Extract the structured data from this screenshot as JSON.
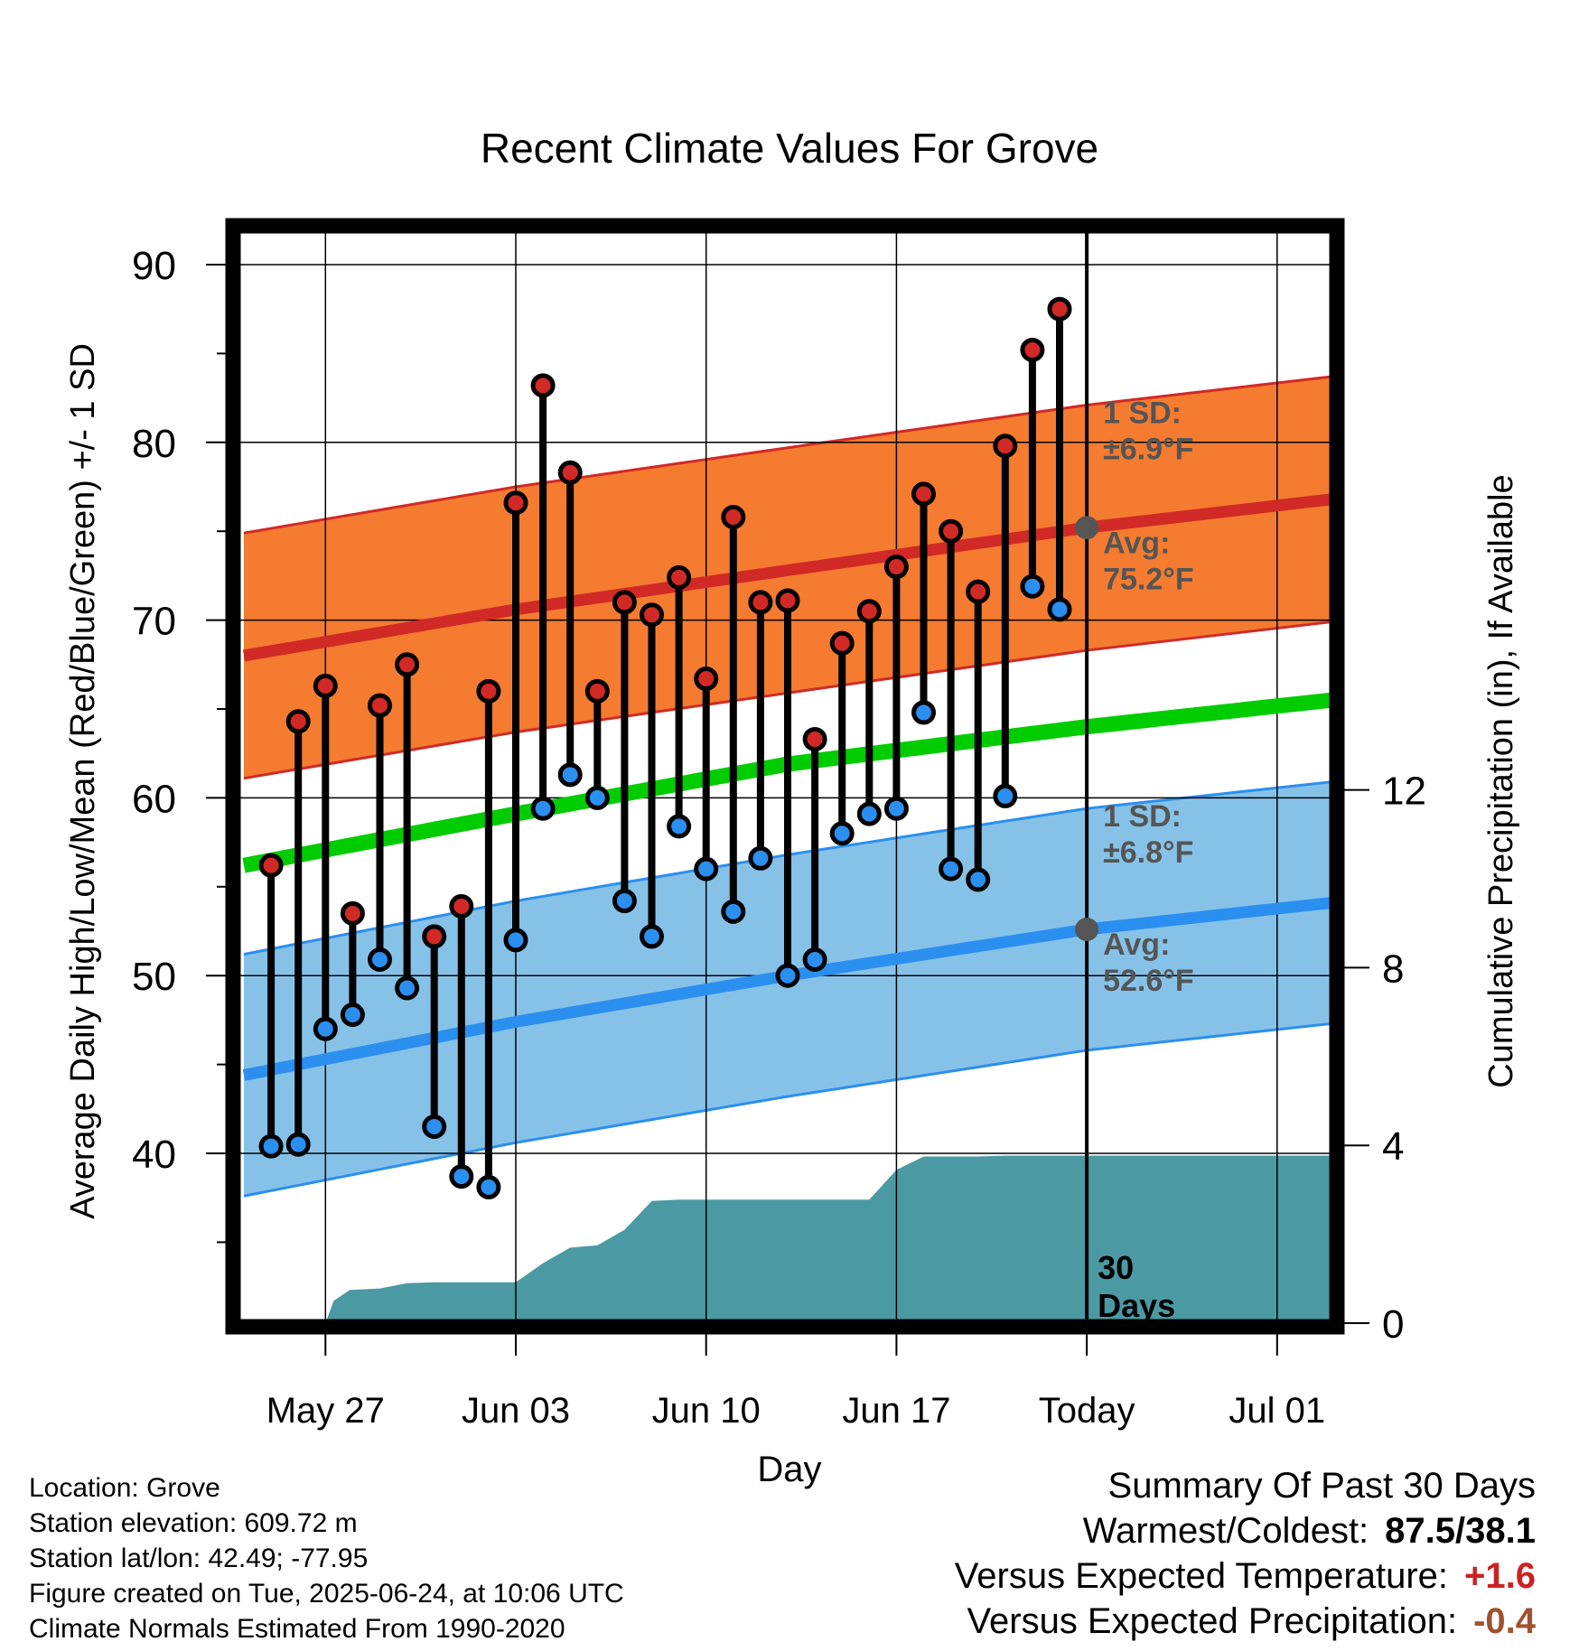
{
  "chart_data": {
    "type": "line",
    "title": "Recent Climate Values For Grove",
    "xlabel": "Day",
    "ylabel": "Average Daily High/Low/Mean (Red/Blue/Green) +/- 1 SD",
    "y2label": "Cumulative Precipitation (in), If Available",
    "ylim": [
      30,
      93
    ],
    "y2lim": [
      0,
      12
    ],
    "y2ticks": [
      "0",
      "4",
      "8",
      "12"
    ],
    "yticks": [
      "40",
      "50",
      "60",
      "70",
      "80",
      "90"
    ],
    "x_range_days_from_may24": [
      0,
      40
    ],
    "xticks": [
      {
        "label": "May 27",
        "day": 3
      },
      {
        "label": "Jun 03",
        "day": 10
      },
      {
        "label": "Jun 10",
        "day": 17
      },
      {
        "label": "Jun 17",
        "day": 24
      },
      {
        "label": "Today",
        "day": 31
      },
      {
        "label": "Jul 01",
        "day": 38
      }
    ],
    "today_day": 31,
    "today_label": "30 Days",
    "grid": true,
    "colors": {
      "high_band": "#f47b2f",
      "high_line": "#d12a26",
      "low_band": "#86c2e8",
      "low_line": "#2b8fef",
      "mean_line": "#00cc00",
      "precip": "#4b9aa3",
      "high_dot": "#d12a26",
      "low_dot": "#2b8fef"
    },
    "normals": {
      "days": [
        0,
        10,
        20,
        31,
        40
      ],
      "high_avg": [
        68.0,
        70.6,
        72.8,
        75.2,
        76.8
      ],
      "high_sd": 6.9,
      "low_avg": [
        44.4,
        47.4,
        50.0,
        52.6,
        54.1
      ],
      "low_sd": 6.8,
      "mean": [
        56.2,
        59.1,
        61.9,
        64.0,
        65.5
      ]
    },
    "series": [
      {
        "name": "High",
        "values": [
          56.2,
          64.3,
          66.3,
          53.5,
          65.2,
          67.5,
          52.2,
          53.9,
          66.0,
          76.6,
          83.2,
          78.3,
          66.0,
          71.0,
          70.3,
          72.4,
          66.7,
          75.8,
          71.0,
          71.1,
          63.3,
          68.7,
          70.5,
          73.0,
          77.1,
          75.0,
          71.6,
          79.8,
          85.2,
          87.5
        ]
      },
      {
        "name": "Low",
        "values": [
          40.4,
          40.5,
          47.0,
          47.8,
          50.9,
          49.3,
          41.5,
          38.7,
          38.1,
          52.0,
          59.4,
          61.3,
          60.0,
          54.2,
          52.2,
          58.4,
          56.0,
          53.6,
          56.6,
          50.0,
          50.9,
          58.0,
          59.1,
          59.4,
          64.8,
          56.0,
          55.4,
          60.1,
          71.9,
          70.6
        ]
      }
    ],
    "obs_start_day": 1,
    "precip": {
      "days": [
        0,
        3,
        3.3,
        3.9,
        4.0,
        5.0,
        6.0,
        7.0,
        8.0,
        9.0,
        10.0,
        11.0,
        12.0,
        13.0,
        14.0,
        15.0,
        16.0,
        17.0,
        18.0,
        19.0,
        20.0,
        21.0,
        22.0,
        23.0,
        24.0,
        25.0,
        26.0,
        27.0,
        28.0,
        29.0,
        30.0,
        31.0,
        40.0
      ],
      "values": [
        0,
        0,
        0.5,
        0.75,
        0.75,
        0.78,
        0.9,
        0.92,
        0.92,
        0.92,
        0.92,
        1.35,
        1.7,
        1.75,
        2.1,
        2.75,
        2.78,
        2.78,
        2.78,
        2.78,
        2.78,
        2.78,
        2.78,
        2.78,
        3.45,
        3.75,
        3.75,
        3.75,
        3.77,
        3.77,
        3.77,
        3.77,
        3.77
      ]
    },
    "annotations": [
      {
        "text_line1": "1 SD:",
        "text_line2": "±6.9°F",
        "series": "high"
      },
      {
        "text_line1": "Avg:",
        "text_line2": "75.2°F",
        "series": "high"
      },
      {
        "text_line1": "1 SD:",
        "text_line2": "±6.8°F",
        "series": "low"
      },
      {
        "text_line1": "Avg:",
        "text_line2": "52.6°F",
        "series": "low"
      }
    ]
  },
  "footer": {
    "location": "Location: Grove",
    "elevation": "Station elevation: 609.72 m",
    "latlon": "Station lat/lon: 42.49; -77.95",
    "created": "Figure created on Tue, 2025-06-24, at 10:06 UTC",
    "normals": "Climate Normals Estimated From 1990-2020"
  },
  "summary": {
    "heading": "Summary Of Past 30 Days",
    "warm_cold_label": "Warmest/Coldest:",
    "warm_cold_value": "87.5/38.1",
    "temp_label": "Versus Expected Temperature:",
    "temp_value": "+1.6",
    "temp_color": "#cc2222",
    "precip_label": "Versus Expected Precipitation:",
    "precip_value": "-0.4",
    "precip_color": "#a0522d"
  }
}
